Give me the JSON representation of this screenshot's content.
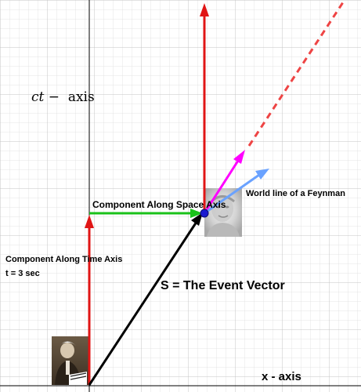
{
  "labels": {
    "ct_axis_prefix": "ct −",
    "ct_axis_suffix": "axis",
    "x_axis": "x - axis",
    "space_component": "Component Along Space Axis",
    "world_line": "World line of a Feynman",
    "time_component": "Component Along Time Axis",
    "time_value": "t = 3 sec",
    "event_vector": "S = The Event Vector"
  },
  "colors": {
    "grid_minor": "#d9d9d9",
    "grid_major": "#bdbdbd",
    "axis": "#000000",
    "time_component": "#e01515",
    "space_component": "#19c219",
    "event_vector": "#000000",
    "world_line": "#ee4444",
    "magenta_vector": "#ff00ff",
    "blue_vector": "#6aa2ff",
    "event_point": "#1a1ad0"
  },
  "images": {
    "einstein_photo": "portrait-photo",
    "feynman_photo": "portrait-photo"
  }
}
